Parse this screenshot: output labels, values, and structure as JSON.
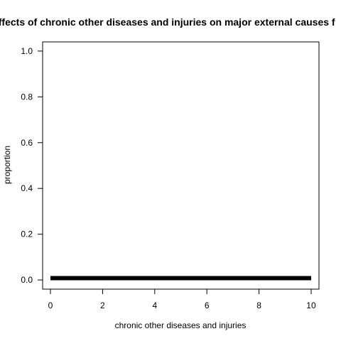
{
  "chart_data": {
    "type": "line",
    "title": "Effects of chronic other diseases and injuries on major external causes f",
    "xlabel": "chronic other diseases and injuries",
    "ylabel": "proportion",
    "xlim": [
      -0.3,
      10.3
    ],
    "ylim": [
      -0.04,
      1.04
    ],
    "xticks": [
      "0",
      "2",
      "4",
      "6",
      "8",
      "10"
    ],
    "yticks": [
      "0.0",
      "0.2",
      "0.4",
      "0.6",
      "0.8",
      "1.0"
    ],
    "grid": false,
    "series": [
      {
        "x": [
          0,
          1,
          2,
          3,
          4,
          5,
          6,
          7,
          8,
          9,
          10
        ],
        "values": [
          0.008,
          0.008,
          0.008,
          0.008,
          0.008,
          0.008,
          0.008,
          0.008,
          0.008,
          0.008,
          0.008
        ],
        "color": "#000000"
      }
    ]
  }
}
